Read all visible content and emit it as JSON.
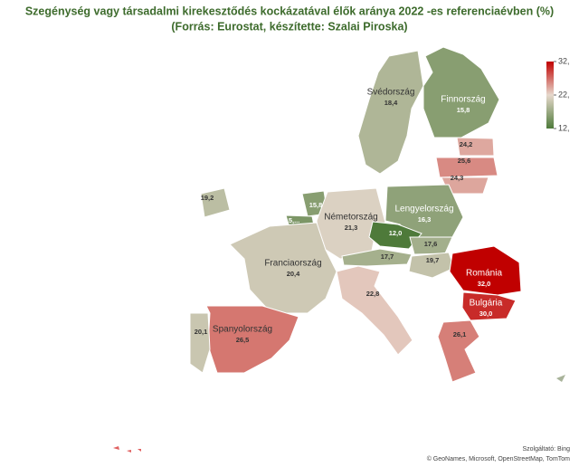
{
  "chart_data": {
    "type": "choropleth",
    "title": "Szegénység vagy társadalmi kirekesztődés kockázatával élők aránya 2022 -es referenciaévben (%)",
    "subtitle": "(Forrás: Eurostat, készítette: Szalai Piroska)",
    "regions": [
      {
        "name": "Svédország",
        "value": 18.4,
        "value_label": "18,4"
      },
      {
        "name": "Finnország",
        "value": 15.8,
        "value_label": "15,8"
      },
      {
        "value": 24.2,
        "value_label": "24,2"
      },
      {
        "value": 25.6,
        "value_label": "25,6"
      },
      {
        "value": 24.3,
        "value_label": "24,3"
      },
      {
        "value": 19.2,
        "value_label": "19,2"
      },
      {
        "value": 15.8,
        "value_label": "15,8"
      },
      {
        "value": 15,
        "value_label": "15,..."
      },
      {
        "name": "Németország",
        "value": 21.3,
        "value_label": "21,3"
      },
      {
        "name": "Lengyelország",
        "value": 16.3,
        "value_label": "16,3"
      },
      {
        "value": 12.0,
        "value_label": "12,0"
      },
      {
        "value": 17.6,
        "value_label": "17,6"
      },
      {
        "value": 17.7,
        "value_label": "17,7"
      },
      {
        "value": 19.7,
        "value_label": "19,7"
      },
      {
        "name": "Franciaország",
        "value": 20.4,
        "value_label": "20,4"
      },
      {
        "value": 22.8,
        "value_label": "22,8"
      },
      {
        "name": "Románia",
        "value": 32.0,
        "value_label": "32,0"
      },
      {
        "name": "Bulgária",
        "value": 30.0,
        "value_label": "30,0"
      },
      {
        "value": 26.1,
        "value_label": "26,1"
      },
      {
        "name": "Spanyolország",
        "value": 26.5,
        "value_label": "26,5"
      },
      {
        "value": 20.1,
        "value_label": "20,1"
      }
    ],
    "colorbar": {
      "lim": [
        12,
        32
      ],
      "colors": [
        "#4e7a3a",
        "#e6d8cc",
        "#c00000"
      ],
      "ticks": [
        {
          "value": 32,
          "label": "32,"
        },
        {
          "value": 22,
          "label": "22,"
        },
        {
          "value": 12,
          "label": "12,"
        }
      ]
    },
    "attribution": [
      "Szolgáltató: Bing",
      "© GeoNames, Microsoft, OpenStreetMap, TomTom"
    ]
  }
}
